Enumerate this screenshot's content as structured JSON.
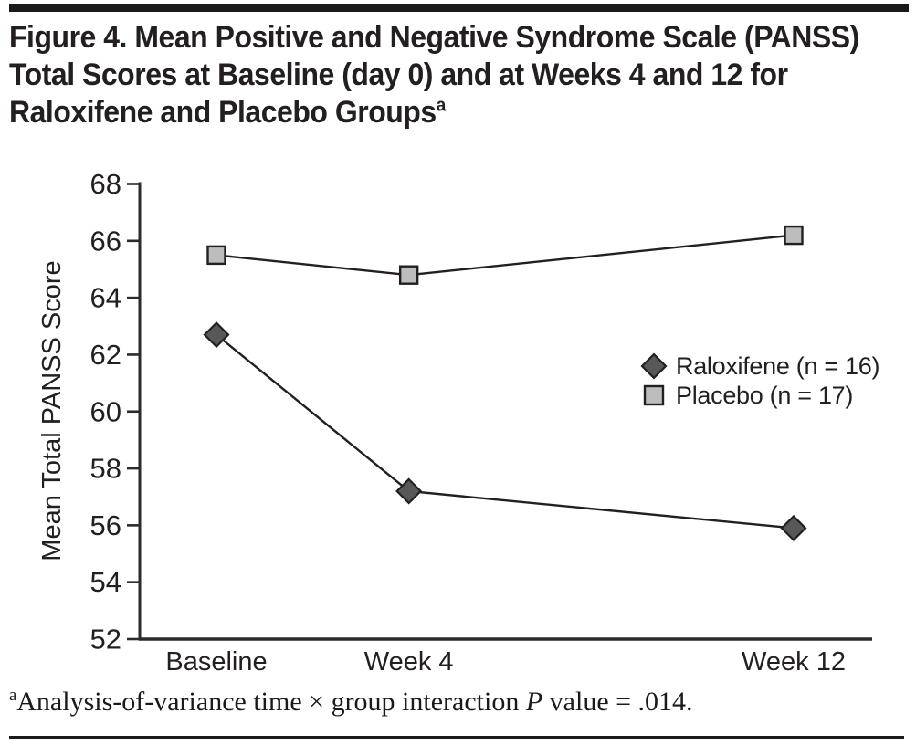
{
  "figure": {
    "title_lines": [
      "Figure 4. Mean Positive and Negative Syndrome Scale (PANSS)",
      "Total Scores at Baseline (day 0) and at Weeks 4 and 12 for",
      "Raloxifene and Placebo Groups"
    ],
    "title_superscript": "a",
    "footnote": {
      "superscript": "a",
      "text_before_p": "Analysis-of-variance time × group interaction ",
      "p_symbol": "P",
      "text_after_p": " value = .014."
    }
  },
  "chart_data": {
    "type": "line",
    "title": "",
    "x_categories": [
      "Baseline",
      "Week 4",
      "Week 12"
    ],
    "x_time_weeks": [
      0,
      4,
      12
    ],
    "series": [
      {
        "name": "Raloxifene (n = 16)",
        "marker": "diamond",
        "marker_fill": "#58585a",
        "values": [
          62.7,
          57.2,
          55.9
        ]
      },
      {
        "name": "Placebo (n = 17)",
        "marker": "square",
        "marker_fill": "#bdbdbd",
        "values": [
          65.5,
          64.8,
          66.2
        ]
      }
    ],
    "ylabel": "Mean Total PANSS Score",
    "xlabel": "",
    "ylim": [
      52,
      68
    ],
    "yticks": [
      52,
      54,
      56,
      58,
      60,
      62,
      64,
      66,
      68
    ],
    "x_axis_time_proportional": true,
    "grid": false,
    "legend_position": "middle-right",
    "line_color": "#231f20",
    "axis_color": "#2b2b2b",
    "ink_color": "#231f20"
  }
}
